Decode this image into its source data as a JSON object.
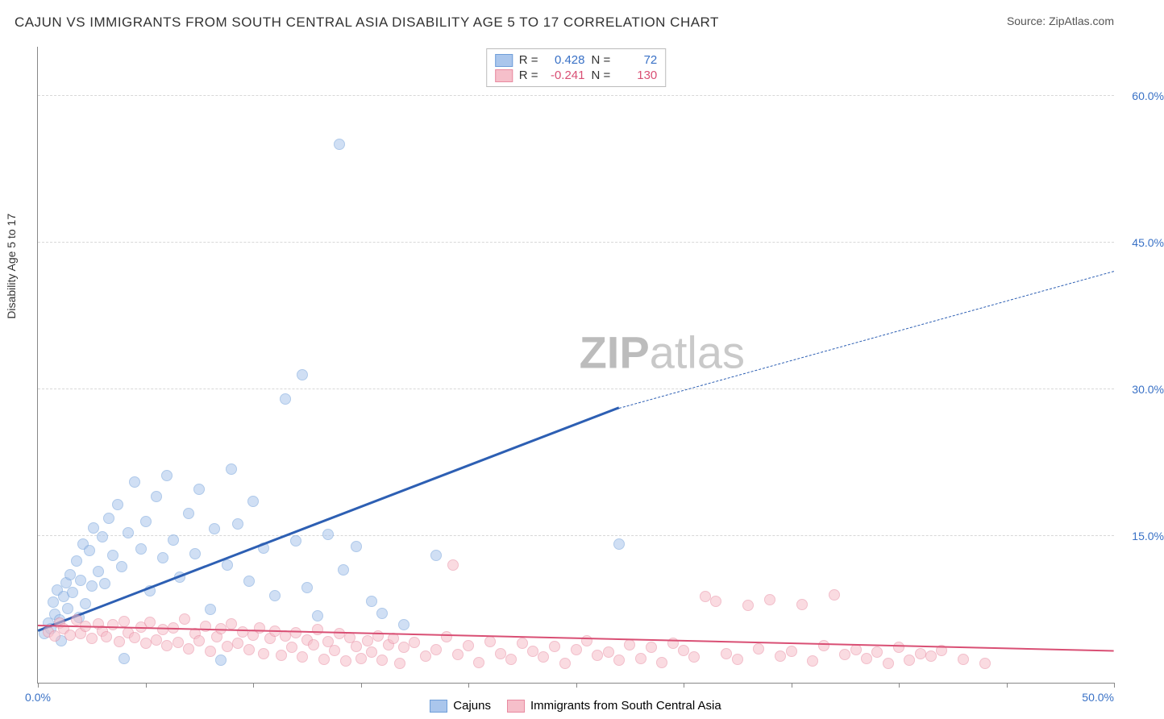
{
  "header": {
    "title": "CAJUN VS IMMIGRANTS FROM SOUTH CENTRAL ASIA DISABILITY AGE 5 TO 17 CORRELATION CHART",
    "source_prefix": "Source: ",
    "source": "ZipAtlas.com"
  },
  "watermark": {
    "zip": "ZIP",
    "atlas": "atlas"
  },
  "chart": {
    "type": "scatter",
    "ylabel": "Disability Age 5 to 17",
    "xlim": [
      0,
      50
    ],
    "ylim": [
      0,
      65
    ],
    "xticks": [
      0,
      5,
      10,
      15,
      20,
      25,
      30,
      35,
      40,
      45,
      50
    ],
    "xtick_labels": {
      "0": "0.0%",
      "50": "50.0%"
    },
    "yticks": [
      15,
      30,
      45,
      60
    ],
    "ytick_labels": {
      "15": "15.0%",
      "30": "30.0%",
      "45": "45.0%",
      "60": "60.0%"
    },
    "background_color": "#ffffff",
    "grid_color": "#d8d8d8",
    "axis_color": "#888888",
    "tick_label_color": "#3971c6",
    "point_radius": 7,
    "point_opacity": 0.55,
    "series": [
      {
        "name": "Cajuns",
        "color_fill": "#aac6ec",
        "color_stroke": "#6f9ed9",
        "stat_color": "#3971c6",
        "R": "0.428",
        "N": "72",
        "trend": {
          "x1": 0,
          "y1": 5.2,
          "x2": 27,
          "y2": 28.0,
          "color": "#2d5fb3",
          "width": 2.5
        },
        "trend_dashed": {
          "x1": 27,
          "y1": 28.0,
          "x2": 50,
          "y2": 42.0,
          "color": "#2d5fb3",
          "width": 1.5,
          "dash": "6,5"
        },
        "points": [
          [
            0.3,
            5.0
          ],
          [
            0.5,
            6.1
          ],
          [
            0.6,
            5.5
          ],
          [
            0.7,
            8.2
          ],
          [
            0.8,
            7.0
          ],
          [
            0.9,
            9.5
          ],
          [
            1.0,
            6.4
          ],
          [
            1.1,
            4.3
          ],
          [
            1.2,
            8.8
          ],
          [
            1.3,
            10.2
          ],
          [
            1.4,
            7.6
          ],
          [
            1.5,
            11.0
          ],
          [
            1.6,
            9.2
          ],
          [
            1.8,
            12.4
          ],
          [
            1.9,
            6.7
          ],
          [
            2.0,
            10.5
          ],
          [
            2.1,
            14.2
          ],
          [
            2.2,
            8.1
          ],
          [
            2.4,
            13.5
          ],
          [
            2.5,
            9.9
          ],
          [
            2.6,
            15.8
          ],
          [
            2.8,
            11.4
          ],
          [
            3.0,
            14.9
          ],
          [
            3.1,
            10.1
          ],
          [
            3.3,
            16.8
          ],
          [
            3.5,
            13.0
          ],
          [
            3.7,
            18.2
          ],
          [
            3.9,
            11.9
          ],
          [
            4.0,
            2.5
          ],
          [
            4.2,
            15.3
          ],
          [
            4.5,
            20.5
          ],
          [
            4.8,
            13.7
          ],
          [
            5.0,
            16.5
          ],
          [
            5.2,
            9.4
          ],
          [
            5.5,
            19.0
          ],
          [
            5.8,
            12.8
          ],
          [
            6.0,
            21.2
          ],
          [
            6.3,
            14.6
          ],
          [
            6.6,
            10.8
          ],
          [
            7.0,
            17.3
          ],
          [
            7.3,
            13.2
          ],
          [
            7.5,
            19.8
          ],
          [
            8.0,
            7.5
          ],
          [
            8.2,
            15.7
          ],
          [
            8.5,
            2.3
          ],
          [
            8.8,
            12.0
          ],
          [
            9.0,
            21.8
          ],
          [
            9.3,
            16.2
          ],
          [
            9.8,
            10.4
          ],
          [
            10.0,
            18.5
          ],
          [
            10.5,
            13.8
          ],
          [
            11.0,
            8.9
          ],
          [
            11.5,
            29.0
          ],
          [
            12.0,
            14.5
          ],
          [
            12.3,
            31.5
          ],
          [
            12.5,
            9.7
          ],
          [
            13.0,
            6.8
          ],
          [
            13.5,
            15.2
          ],
          [
            14.0,
            55.0
          ],
          [
            14.2,
            11.5
          ],
          [
            14.8,
            13.9
          ],
          [
            15.5,
            8.3
          ],
          [
            16.0,
            7.1
          ],
          [
            17.0,
            5.9
          ],
          [
            18.5,
            13.0
          ],
          [
            27.0,
            14.2
          ]
        ]
      },
      {
        "name": "Immigrants from South Central Asia",
        "color_fill": "#f6bfca",
        "color_stroke": "#e88aa0",
        "stat_color": "#d94f74",
        "R": "-0.241",
        "N": "130",
        "trend": {
          "x1": 0,
          "y1": 5.8,
          "x2": 50,
          "y2": 3.2,
          "color": "#d94f74",
          "width": 2
        },
        "points": [
          [
            0.5,
            5.2
          ],
          [
            0.8,
            4.8
          ],
          [
            1.0,
            6.1
          ],
          [
            1.2,
            5.5
          ],
          [
            1.5,
            4.9
          ],
          [
            1.8,
            6.4
          ],
          [
            2.0,
            5.0
          ],
          [
            2.2,
            5.8
          ],
          [
            2.5,
            4.5
          ],
          [
            2.8,
            6.0
          ],
          [
            3.0,
            5.3
          ],
          [
            3.2,
            4.7
          ],
          [
            3.5,
            5.9
          ],
          [
            3.8,
            4.2
          ],
          [
            4.0,
            6.3
          ],
          [
            4.2,
            5.1
          ],
          [
            4.5,
            4.6
          ],
          [
            4.8,
            5.7
          ],
          [
            5.0,
            4.0
          ],
          [
            5.2,
            6.2
          ],
          [
            5.5,
            4.4
          ],
          [
            5.8,
            5.4
          ],
          [
            6.0,
            3.8
          ],
          [
            6.3,
            5.6
          ],
          [
            6.5,
            4.1
          ],
          [
            6.8,
            6.5
          ],
          [
            7.0,
            3.5
          ],
          [
            7.3,
            5.0
          ],
          [
            7.5,
            4.3
          ],
          [
            7.8,
            5.8
          ],
          [
            8.0,
            3.2
          ],
          [
            8.3,
            4.7
          ],
          [
            8.5,
            5.5
          ],
          [
            8.8,
            3.7
          ],
          [
            9.0,
            6.0
          ],
          [
            9.3,
            4.0
          ],
          [
            9.5,
            5.2
          ],
          [
            9.8,
            3.4
          ],
          [
            10.0,
            4.9
          ],
          [
            10.3,
            5.6
          ],
          [
            10.5,
            3.0
          ],
          [
            10.8,
            4.5
          ],
          [
            11.0,
            5.3
          ],
          [
            11.3,
            2.8
          ],
          [
            11.5,
            4.8
          ],
          [
            11.8,
            3.6
          ],
          [
            12.0,
            5.1
          ],
          [
            12.3,
            2.6
          ],
          [
            12.5,
            4.4
          ],
          [
            12.8,
            3.9
          ],
          [
            13.0,
            5.4
          ],
          [
            13.3,
            2.4
          ],
          [
            13.5,
            4.2
          ],
          [
            13.8,
            3.3
          ],
          [
            14.0,
            5.0
          ],
          [
            14.3,
            2.2
          ],
          [
            14.5,
            4.6
          ],
          [
            14.8,
            3.7
          ],
          [
            15.0,
            2.5
          ],
          [
            15.3,
            4.3
          ],
          [
            15.5,
            3.1
          ],
          [
            15.8,
            4.8
          ],
          [
            16.0,
            2.3
          ],
          [
            16.3,
            3.9
          ],
          [
            16.5,
            4.5
          ],
          [
            16.8,
            2.0
          ],
          [
            17.0,
            3.6
          ],
          [
            17.5,
            4.1
          ],
          [
            18.0,
            2.7
          ],
          [
            18.5,
            3.4
          ],
          [
            19.0,
            4.7
          ],
          [
            19.3,
            12.0
          ],
          [
            19.5,
            2.9
          ],
          [
            20.0,
            3.8
          ],
          [
            20.5,
            2.1
          ],
          [
            21.0,
            4.2
          ],
          [
            21.5,
            3.0
          ],
          [
            22.0,
            2.4
          ],
          [
            22.5,
            4.0
          ],
          [
            23.0,
            3.2
          ],
          [
            23.5,
            2.6
          ],
          [
            24.0,
            3.7
          ],
          [
            24.5,
            2.0
          ],
          [
            25.0,
            3.4
          ],
          [
            25.5,
            4.3
          ],
          [
            26.0,
            2.8
          ],
          [
            26.5,
            3.1
          ],
          [
            27.0,
            2.3
          ],
          [
            27.5,
            3.9
          ],
          [
            28.0,
            2.5
          ],
          [
            28.5,
            3.6
          ],
          [
            29.0,
            2.1
          ],
          [
            29.5,
            4.0
          ],
          [
            30.0,
            3.3
          ],
          [
            30.5,
            2.6
          ],
          [
            31.0,
            8.8
          ],
          [
            31.5,
            8.3
          ],
          [
            32.0,
            3.0
          ],
          [
            32.5,
            2.4
          ],
          [
            33.0,
            7.9
          ],
          [
            33.5,
            3.5
          ],
          [
            34.0,
            8.5
          ],
          [
            34.5,
            2.7
          ],
          [
            35.0,
            3.2
          ],
          [
            35.5,
            8.0
          ],
          [
            36.0,
            2.2
          ],
          [
            36.5,
            3.8
          ],
          [
            37.0,
            9.0
          ],
          [
            37.5,
            2.9
          ],
          [
            38.0,
            3.4
          ],
          [
            38.5,
            2.5
          ],
          [
            39.0,
            3.1
          ],
          [
            39.5,
            2.0
          ],
          [
            40.0,
            3.6
          ],
          [
            40.5,
            2.3
          ],
          [
            41.0,
            3.0
          ],
          [
            41.5,
            2.7
          ],
          [
            42.0,
            3.3
          ],
          [
            43.0,
            2.4
          ],
          [
            44.0,
            2.0
          ]
        ]
      }
    ]
  },
  "legend_bottom": {
    "series1": "Cajuns",
    "series2": "Immigrants from South Central Asia"
  },
  "legend_stats": {
    "R_label": "R =",
    "N_label": "N ="
  }
}
